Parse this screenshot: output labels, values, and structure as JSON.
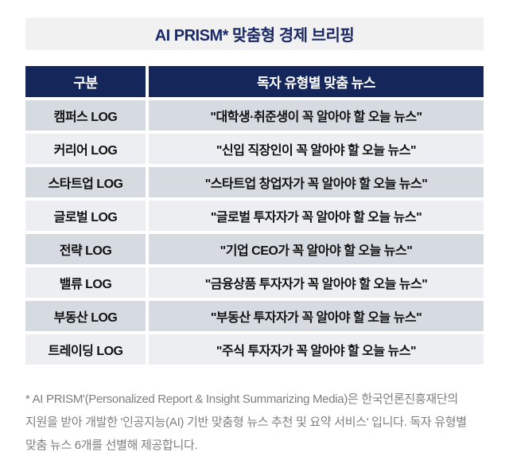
{
  "title": "AI PRISM* 맞춤형 경제 브리핑",
  "table": {
    "headers": {
      "category": "구분",
      "news": "독자 유형별 맞춤 뉴스"
    },
    "rows": [
      {
        "category": "캠퍼스 LOG",
        "news": "\"대학생·취준생이 꼭 알아야 할 오늘 뉴스\""
      },
      {
        "category": "커리어 LOG",
        "news": "\"신입 직장인이 꼭 알아야 할 오늘 뉴스\""
      },
      {
        "category": "스타트업 LOG",
        "news": "\"스타트업 창업자가 꼭 알아야 할 오늘 뉴스\""
      },
      {
        "category": "글로벌 LOG",
        "news": "\"글로벌 투자자가 꼭 알아야 할 오늘 뉴스\""
      },
      {
        "category": "전략 LOG",
        "news": "\"기업 CEO가 꼭 알아야 할 오늘 뉴스\""
      },
      {
        "category": "밸류 LOG",
        "news": "\"금융상품 투자자가 꼭 알아야 할 오늘 뉴스\""
      },
      {
        "category": "부동산 LOG",
        "news": "\"부동산 투자자가 꼭 알아야 할 오늘 뉴스\""
      },
      {
        "category": "트레이딩 LOG",
        "news": "\"주식 투자자가 꼭 알아야 할 오늘 뉴스\""
      }
    ]
  },
  "footnote": "* AI PRISM'(Personalized Report & Insight Summarizing Media)은 한국언론진흥재단의 지원을 받아 개발한 '인공지능(AI) 기반 맞춤형 뉴스 추천 및 요약 서비스' 입니다. 독자 유형별 맞춤 뉴스 6개를 선별해 제공합니다.",
  "colors": {
    "header_bg": "#15265b",
    "title_text": "#1b2a66",
    "title_bar_bg": "#f1f1f2",
    "row_dark": "#d6dae1",
    "row_light": "#eceef2",
    "footnote_text": "#7e7e7e"
  }
}
